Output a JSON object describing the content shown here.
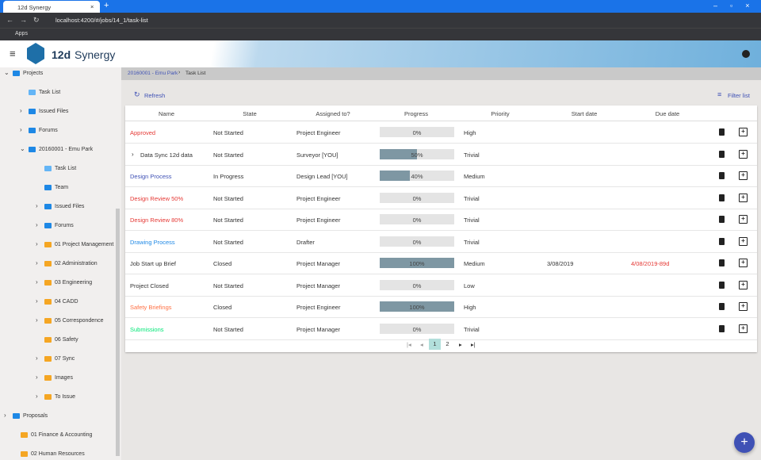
{
  "browser": {
    "tab_title": "12d Synergy",
    "url": "localhost:4200/#/jobs/14_1/task-list",
    "bookmark": "Apps"
  },
  "header": {
    "logo": "12d",
    "product": "Synergy"
  },
  "sidebar": {
    "items": [
      "Projects",
      "Task List",
      "Issued Files",
      "Forums",
      "20160001 - Emu Park",
      "Task List",
      "Team",
      "Issued Files",
      "Forums",
      "01 Project Management",
      "02 Administration",
      "03 Engineering",
      "04 CADD",
      "05 Correspondence",
      "06 Safety",
      "07 Sync",
      "Images",
      "To Issue",
      "Proposals",
      "01 Finance & Accounting",
      "02 Human Resources"
    ]
  },
  "breadcrumb": [
    "20160001 - Emu Park",
    "Task List"
  ],
  "toolbar": {
    "refresh": "Refresh",
    "filter": "Filter list"
  },
  "table": {
    "columns": [
      "Name",
      "State",
      "Assigned to?",
      "Progress",
      "Priority",
      "Start date",
      "Due date"
    ],
    "rows": [
      [
        "Approved",
        "Not Started",
        "Project Engineer",
        "0%",
        "High",
        "",
        ""
      ],
      [
        "Data Sync 12d data",
        "Not Started",
        "Surveyor [YOU]",
        "50%",
        "Trivial",
        "",
        ""
      ],
      [
        "Design Process",
        "In Progress",
        "Design Lead [YOU]",
        "40%",
        "Medium",
        "",
        ""
      ],
      [
        "Design Review 50%",
        "Not Started",
        "Project Engineer",
        "0%",
        "Trivial",
        "",
        ""
      ],
      [
        "Design Review 80%",
        "Not Started",
        "Project Engineer",
        "0%",
        "Trivial",
        "",
        ""
      ],
      [
        "Drawing Process",
        "Not Started",
        "Drafter",
        "0%",
        "Trivial",
        "",
        ""
      ],
      [
        "Job Start up Brief",
        "Closed",
        "Project Manager",
        "100%",
        "Medium",
        "3/08/2019",
        "4/08/2019-89d"
      ],
      [
        "Project Closed",
        "Not Started",
        "Project Manager",
        "0%",
        "Low",
        "",
        ""
      ],
      [
        "Safety Briefings",
        "Closed",
        "Project Engineer",
        "100%",
        "High",
        "",
        ""
      ],
      [
        "Submissions",
        "Not Started",
        "Project Manager",
        "0%",
        "Trivial",
        "",
        ""
      ]
    ]
  },
  "pagination": {
    "pages": [
      "1",
      "2"
    ]
  }
}
